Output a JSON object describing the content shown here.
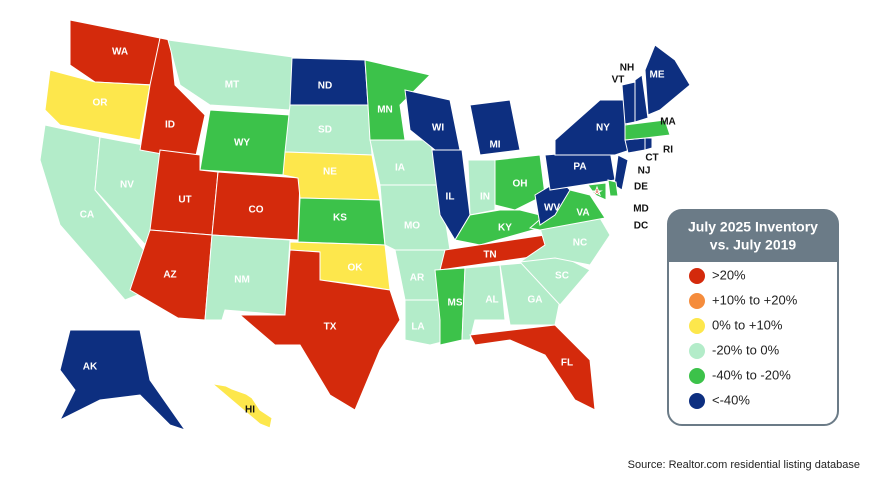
{
  "legend": {
    "title": [
      "July 2025 Inventory",
      "vs. July 2019"
    ],
    "items": [
      {
        "label": ">20%",
        "color": "#d42a0c"
      },
      {
        "label": "+10% to +20%",
        "color": "#f58c3c"
      },
      {
        "label": "0% to +10%",
        "color": "#fde74c"
      },
      {
        "label": "-20% to 0%",
        "color": "#b3ecc9"
      },
      {
        "label": "-40% to -20%",
        "color": "#3cc24a"
      },
      {
        "label": "<-40%",
        "color": "#0d2f80"
      }
    ]
  },
  "states": [
    {
      "label": "WA",
      "group": 0
    },
    {
      "label": "OR",
      "group": 2
    },
    {
      "label": "CA",
      "group": 3
    },
    {
      "label": "NV",
      "group": 3
    },
    {
      "label": "ID",
      "group": 0
    },
    {
      "label": "MT",
      "group": 3
    },
    {
      "label": "WY",
      "group": 4
    },
    {
      "label": "UT",
      "group": 0
    },
    {
      "label": "CO",
      "group": 0
    },
    {
      "label": "AZ",
      "group": 0
    },
    {
      "label": "NM",
      "group": 3
    },
    {
      "label": "ND",
      "group": 5
    },
    {
      "label": "SD",
      "group": 3
    },
    {
      "label": "NE",
      "group": 2
    },
    {
      "label": "KS",
      "group": 4
    },
    {
      "label": "OK",
      "group": 2
    },
    {
      "label": "TX",
      "group": 0
    },
    {
      "label": "MN",
      "group": 4
    },
    {
      "label": "IA",
      "group": 3
    },
    {
      "label": "MO",
      "group": 3
    },
    {
      "label": "AR",
      "group": 3
    },
    {
      "label": "LA",
      "group": 3
    },
    {
      "label": "WI",
      "group": 5
    },
    {
      "label": "IL",
      "group": 5
    },
    {
      "label": "MI",
      "group": 5
    },
    {
      "label": "IN",
      "group": 3
    },
    {
      "label": "OH",
      "group": 4
    },
    {
      "label": "KY",
      "group": 4
    },
    {
      "label": "TN",
      "group": 0
    },
    {
      "label": "MS",
      "group": 4
    },
    {
      "label": "AL",
      "group": 3
    },
    {
      "label": "GA",
      "group": 3
    },
    {
      "label": "FL",
      "group": 0
    },
    {
      "label": "SC",
      "group": 3
    },
    {
      "label": "NC",
      "group": 3
    },
    {
      "label": "VA",
      "group": 4
    },
    {
      "label": "WV",
      "group": 5
    },
    {
      "label": "PA",
      "group": 5
    },
    {
      "label": "NY",
      "group": 5
    },
    {
      "label": "NJ",
      "group": 5
    },
    {
      "label": "DE",
      "group": 4
    },
    {
      "label": "MD",
      "group": 4
    },
    {
      "label": "DC",
      "group": 0
    },
    {
      "label": "CT",
      "group": 5
    },
    {
      "label": "RI",
      "group": 5
    },
    {
      "label": "MA",
      "group": 4
    },
    {
      "label": "VT",
      "group": 5
    },
    {
      "label": "NH",
      "group": 5
    },
    {
      "label": "ME",
      "group": 5
    },
    {
      "label": "AK",
      "group": 5
    },
    {
      "label": "HI",
      "group": 2
    }
  ],
  "source": "Source: Realtor.com residential listing database"
}
